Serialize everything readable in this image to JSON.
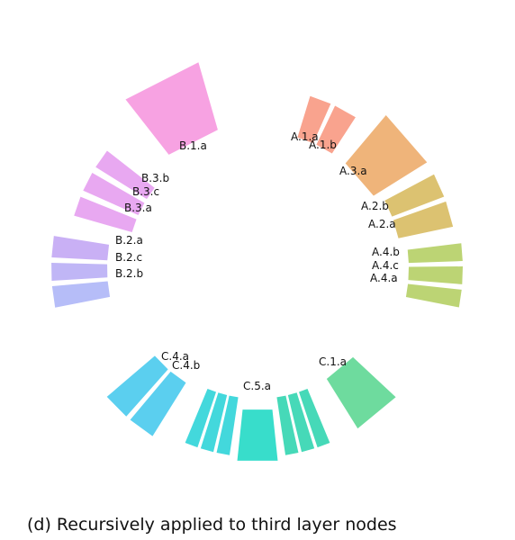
{
  "caption": "(d) Recursively applied to third layer nodes",
  "nodes": [
    {
      "label": "A.1.a",
      "color": "#f9a38e"
    },
    {
      "label": "A.1.b",
      "color": "#f9a38e"
    },
    {
      "label": "A.3.a",
      "color": "#efb47a"
    },
    {
      "label": "A.2.b",
      "color": "#dcc271"
    },
    {
      "label": "A.2.a",
      "color": "#dcc271"
    },
    {
      "label": "A.4.b",
      "color": "#bcd474"
    },
    {
      "label": "A.4.c",
      "color": "#bcd474"
    },
    {
      "label": "A.4.a",
      "color": "#bcd474"
    },
    {
      "label": "B.1.a",
      "color": "#f7a2e2"
    },
    {
      "label": "B.3.b",
      "color": "#e8a8f1"
    },
    {
      "label": "B.3.c",
      "color": "#e8a8f1"
    },
    {
      "label": "B.3.a",
      "color": "#e8a8f1"
    },
    {
      "label": "B.2.a",
      "color": "#c9b0f5"
    },
    {
      "label": "B.2.c",
      "color": "#c0b6f6"
    },
    {
      "label": "B.2.b",
      "color": "#b6bdf8"
    },
    {
      "label": "C.1.a",
      "color": "#6edb9e"
    },
    {
      "label": "C.5.a",
      "color": "#38ddcb"
    },
    {
      "label": "C.4.a",
      "color": "#5bcfef"
    },
    {
      "label": "C.4.b",
      "color": "#5bcfef"
    }
  ],
  "unlabeled_segments": [
    {
      "group": "C.2",
      "color": "#46d9b8"
    },
    {
      "group": "C.3",
      "color": "#43d8dc"
    }
  ]
}
